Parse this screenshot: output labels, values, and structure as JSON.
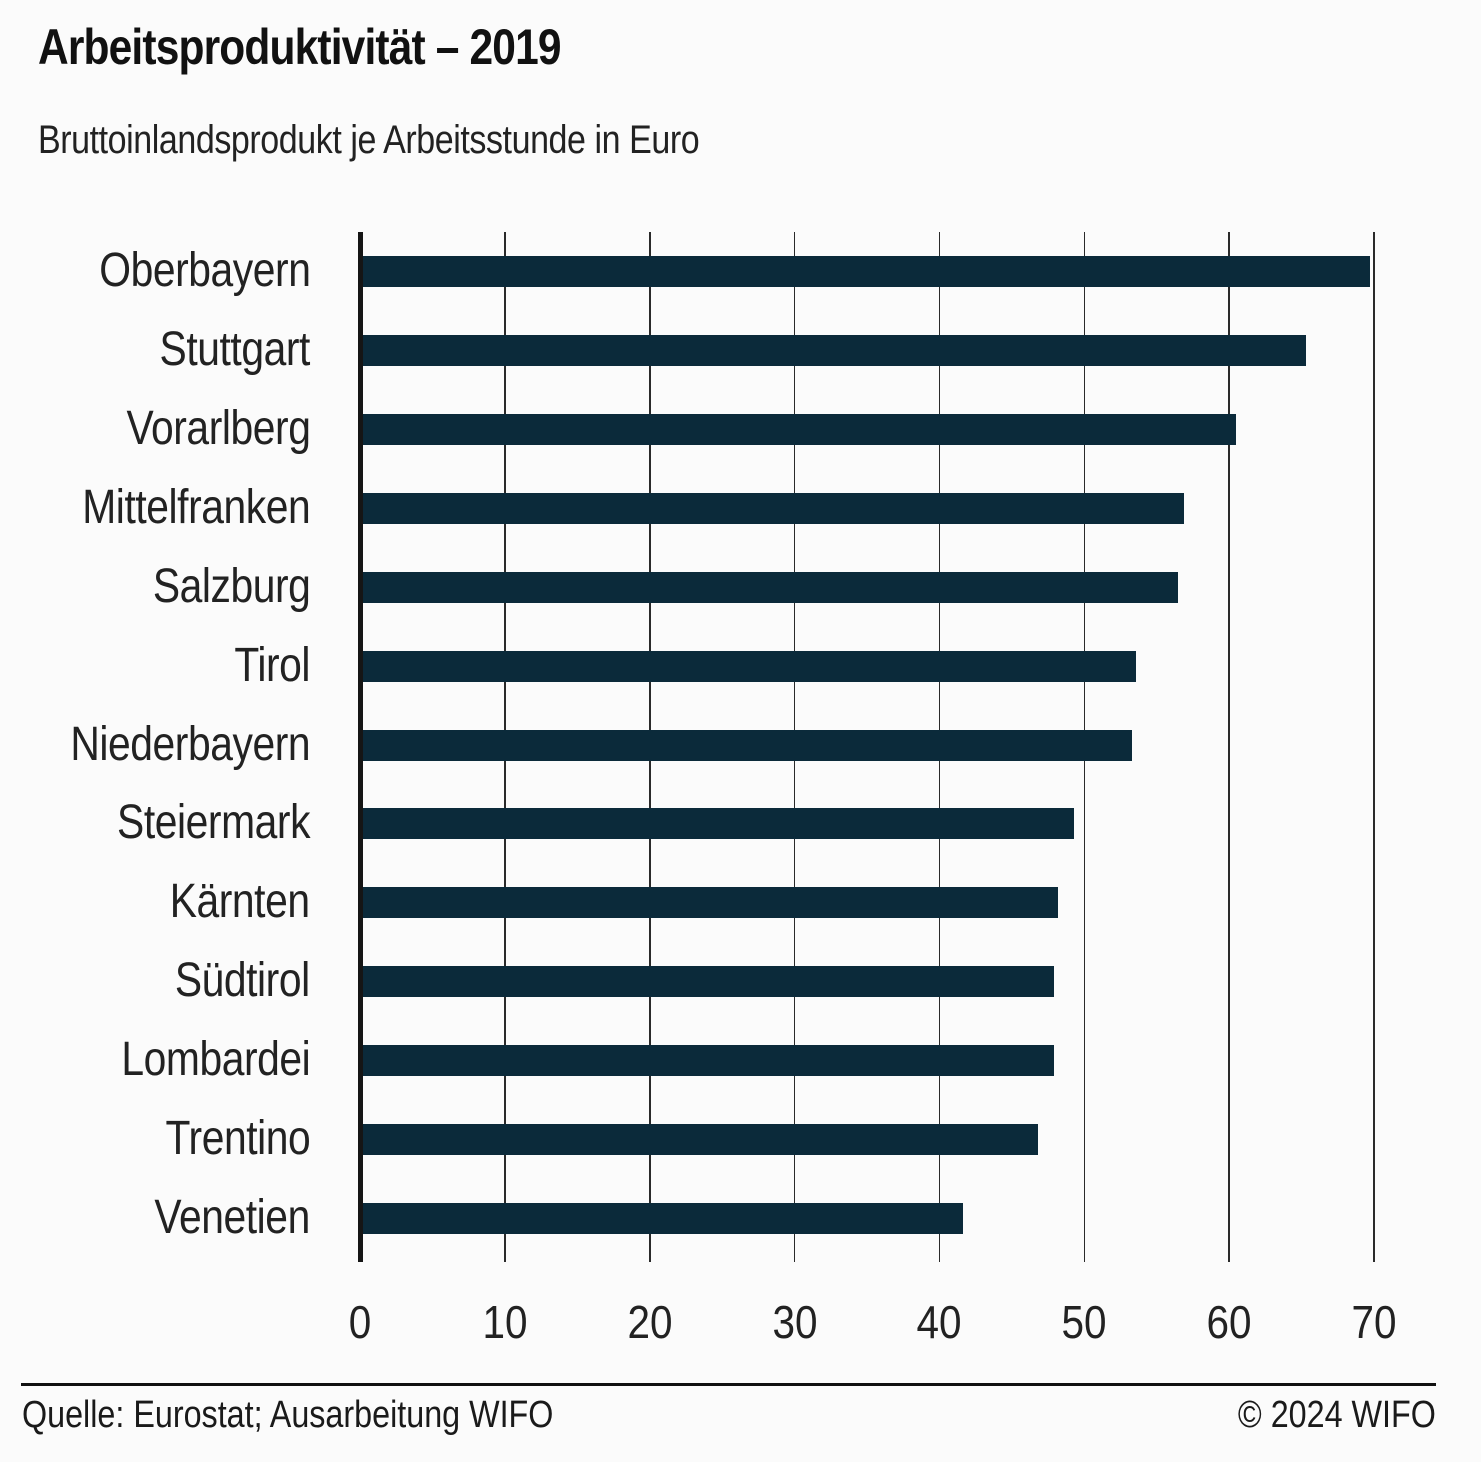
{
  "chart_data": {
    "type": "bar",
    "orientation": "horizontal",
    "title": "Arbeitsproduktivität – 2019",
    "subtitle": "Bruttoinlandsprodukt je Arbeitsstunde in Euro",
    "categories": [
      "Oberbayern",
      "Stuttgart",
      "Vorarlberg",
      "Mittelfranken",
      "Salzburg",
      "Tirol",
      "Niederbayern",
      "Steiermark",
      "Kärnten",
      "Südtirol",
      "Lombardei",
      "Trentino",
      "Venetien"
    ],
    "values": [
      69.7,
      65.3,
      60.5,
      56.9,
      56.5,
      53.6,
      53.3,
      49.3,
      48.2,
      47.9,
      47.9,
      46.8,
      41.6
    ],
    "xlabel": "",
    "ylabel": "",
    "xlim": [
      0,
      70
    ],
    "xticks": [
      0,
      10,
      20,
      30,
      40,
      50,
      60,
      70
    ],
    "grid": "vertical",
    "legend": "none",
    "bar_color": "#0b2a3a",
    "gridline_color": "#2a2a2a",
    "axis_color": "#151515"
  },
  "footer": {
    "source": "Quelle: Eurostat; Ausarbeitung WIFO",
    "copyright": "© 2024 WIFO"
  }
}
